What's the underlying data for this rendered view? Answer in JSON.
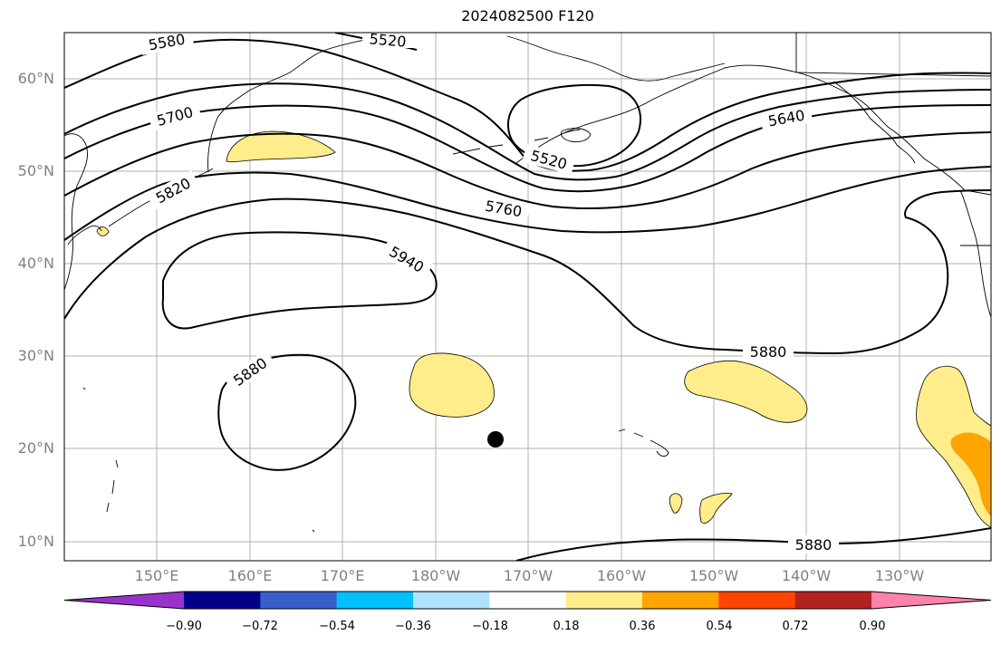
{
  "title": "2024082500 F120",
  "lat_labels": [
    "60°N",
    "50°N",
    "40°N",
    "30°N",
    "20°N",
    "10°N"
  ],
  "lon_labels": [
    "150°E",
    "160°E",
    "170°E",
    "180°W",
    "170°W",
    "160°W",
    "150°W",
    "140°W",
    "130°W"
  ],
  "contour_labels": {
    "c5580": "5580",
    "c5520_top": "5520",
    "c5700": "5700",
    "c5520_ring": "5520",
    "c5640": "5640",
    "c5820": "5820",
    "c5760": "5760",
    "c5940": "5940",
    "c5880_right": "5880",
    "c5880_left": "5880",
    "c5880_bottom": "5880"
  },
  "colorbar": {
    "colors": [
      "#9932cc",
      "#00008b",
      "#3a5fcd",
      "#00bfff",
      "#b0e2ff",
      "#ffffff",
      "#ffec8b",
      "#ffa500",
      "#ff4500",
      "#b22222",
      "#ff82ab"
    ],
    "tick_labels": [
      "−0.90",
      "−0.72",
      "−0.54",
      "−0.36",
      "−0.18",
      "0.18",
      "0.36",
      "0.54",
      "0.72",
      "0.90"
    ]
  }
}
